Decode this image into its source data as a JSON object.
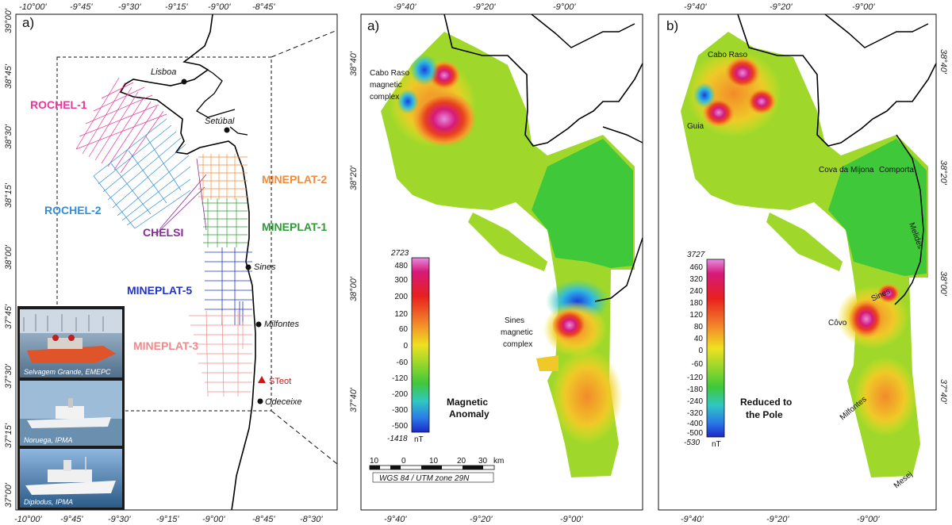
{
  "panel_left": {
    "letter": "a)",
    "top_ticks": [
      "-10°00'",
      "-9°45'",
      "-9°30'",
      "-9°15'",
      "-9°00'",
      "-8°45'"
    ],
    "bottom_ticks": [
      "-10°00'",
      "-9°45'",
      "-9°30'",
      "-9°15'",
      "-9°00'",
      "-8°45'",
      "-8°30'"
    ],
    "left_ticks": [
      "39°00'",
      "38°45'",
      "38°30'",
      "38°15'",
      "38°00'",
      "37°45'",
      "37°30'",
      "37°15'",
      "37°00'"
    ],
    "cities": [
      "Lisboa",
      "Setúbal",
      "Sines",
      "Milfontes",
      "Odeceixe"
    ],
    "station": "STeot",
    "surveys": [
      {
        "name": "ROCHEL-1",
        "color": "#e8389b"
      },
      {
        "name": "ROCHEL-2",
        "color": "#2f8fd8"
      },
      {
        "name": "CHELSI",
        "color": "#8a2a9a"
      },
      {
        "name": "MINEPLAT-2",
        "color": "#f28a3a"
      },
      {
        "name": "MINEPLAT-1",
        "color": "#2e9a36"
      },
      {
        "name": "MINEPLAT-5",
        "color": "#2033c8"
      },
      {
        "name": "MINEPLAT-3",
        "color": "#f08a8a"
      }
    ],
    "photos": [
      {
        "caption": "Selvagem Grande, EMEPC"
      },
      {
        "caption": "Noruega, IPMA"
      },
      {
        "caption": "Diplodus, IPMA"
      }
    ]
  },
  "panel_a": {
    "letter": "a)",
    "top_ticks": [
      "-9°40'",
      "-9°20'",
      "-9°00'"
    ],
    "bottom_ticks": [
      "-9°40'",
      "-9°20'",
      "-9°00'"
    ],
    "left_ticks": [
      "38°40'",
      "38°20'",
      "38°00'",
      "37°40'"
    ],
    "complex_labels": [
      {
        "lines": [
          "Cabo Raso",
          "magnetic",
          "complex"
        ]
      },
      {
        "lines": [
          "Sines",
          "magnetic",
          "complex"
        ]
      }
    ],
    "colorbar": {
      "max": "2723",
      "min": "-1418",
      "ticks": [
        "480",
        "300",
        "200",
        "120",
        "60",
        "0",
        "-60",
        "-120",
        "-200",
        "-300",
        "-500"
      ],
      "unit": "nT"
    },
    "title_lines": [
      "Magnetic",
      "Anomaly"
    ],
    "scalebar": {
      "ticks": [
        "10",
        "0",
        "10",
        "20",
        "30"
      ],
      "unit": "km",
      "projection": "WGS 84 / UTM zone 29N"
    }
  },
  "panel_b": {
    "letter": "b)",
    "top_ticks": [
      "-9°40'",
      "-9°20'",
      "-9°00'"
    ],
    "bottom_ticks": [
      "-9°40'",
      "-9°20'",
      "-9°00'"
    ],
    "right_ticks": [
      "38°40'",
      "38°20'",
      "38°00'",
      "37°40'"
    ],
    "place_labels": [
      "Cabo Raso",
      "Guia",
      "Cova da Mijona",
      "Comporta",
      "Melides",
      "Sines",
      "Côvo",
      "Milfontes",
      "Mesej"
    ],
    "colorbar": {
      "max": "3727",
      "min": "-530",
      "ticks": [
        "460",
        "320",
        "240",
        "180",
        "120",
        "80",
        "40",
        "0",
        "-60",
        "-120",
        "-180",
        "-240",
        "-320",
        "-400",
        "-500"
      ],
      "unit": "nT"
    },
    "title_lines": [
      "Reduced to",
      "the Pole"
    ]
  },
  "colors": {
    "anomaly_high": "#d61a7a",
    "anomaly_peak": "#e58be0",
    "anomaly_mid": "#f0e020",
    "anomaly_zero": "#3ec83a",
    "anomaly_low": "#1a40e0",
    "coastline": "#000000"
  }
}
